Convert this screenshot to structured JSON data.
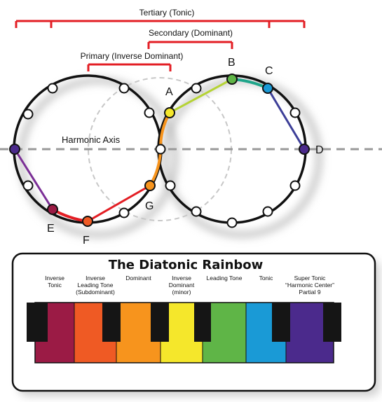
{
  "brackets": {
    "tertiary": "Tertiary (Tonic)",
    "secondary": "Secondary (Dominant)",
    "primary": "Primary (Inverse Dominant)"
  },
  "axis_label": "Harmonic Axis",
  "points": {
    "A": "A",
    "B": "B",
    "C": "C",
    "D": "D",
    "E": "E",
    "F": "F",
    "G": "G"
  },
  "panel": {
    "title": "The Diatonic Rainbow",
    "keys": [
      {
        "label": "Inverse\nTonic",
        "color": "#9b1b45"
      },
      {
        "label": "Inverse\nLeading Tone\n(Subdominant)",
        "color": "#ef5a24"
      },
      {
        "label": "Dominant",
        "color": "#f7941d"
      },
      {
        "label": "Inverse\nDominant\n(minor)",
        "color": "#f5e72b"
      },
      {
        "label": "Leading Tone",
        "color": "#5fb547"
      },
      {
        "label": "Tonic",
        "color": "#1a9ad6"
      },
      {
        "label": "Super Tonic\n“Harmonic Center”\nPartial 9",
        "color": "#4b2a8c"
      }
    ]
  },
  "colors": {
    "bracket": "#e31e24",
    "axis": "#999999",
    "circle": "#111111"
  }
}
